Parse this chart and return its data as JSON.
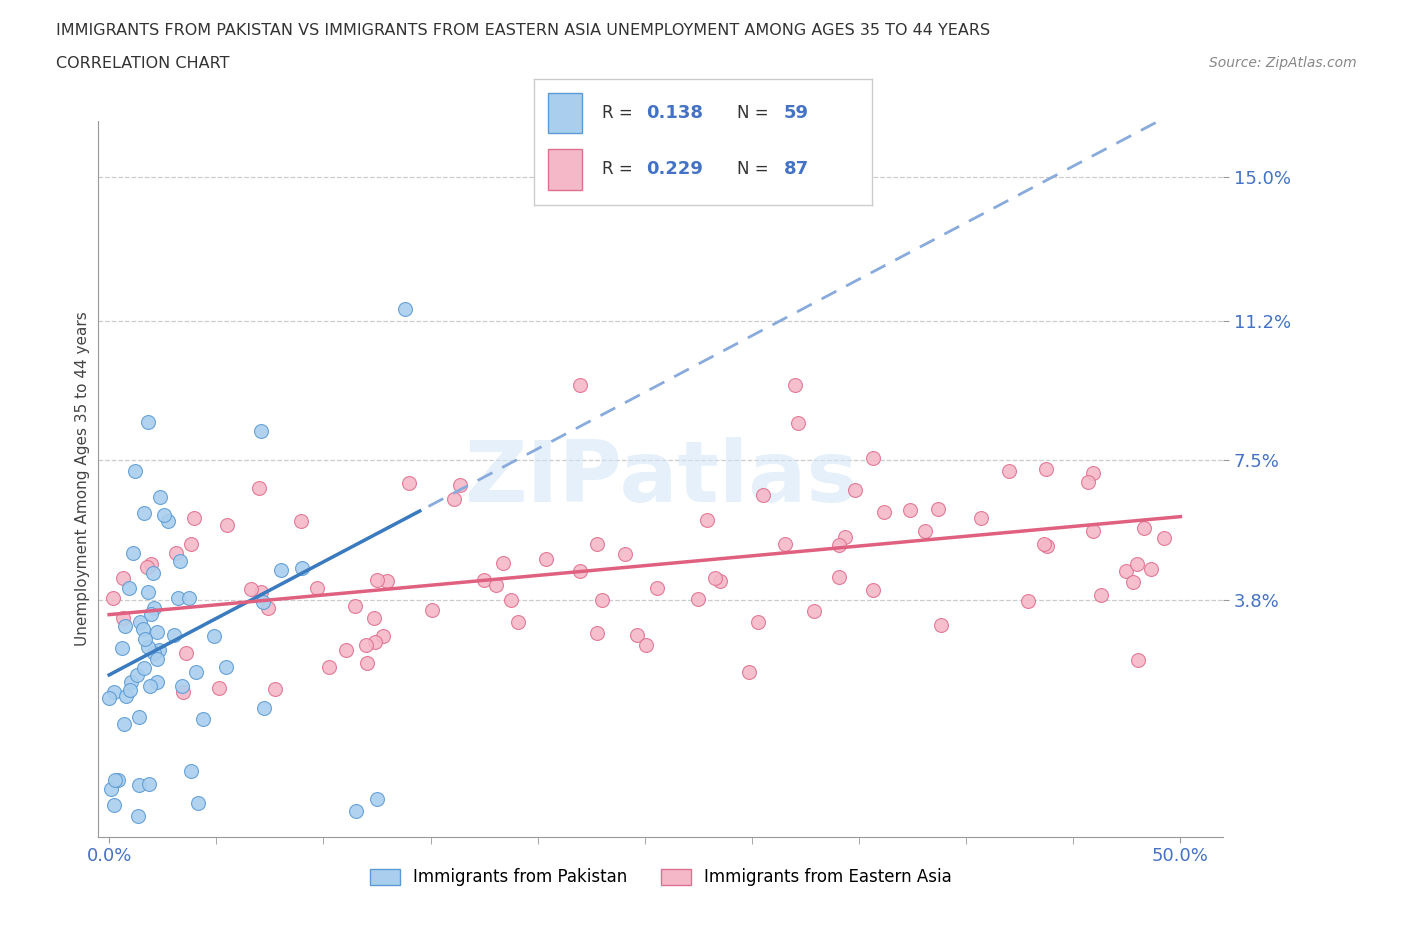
{
  "title_line1": "IMMIGRANTS FROM PAKISTAN VS IMMIGRANTS FROM EASTERN ASIA UNEMPLOYMENT AMONG AGES 35 TO 44 YEARS",
  "title_line2": "CORRELATION CHART",
  "source_text": "Source: ZipAtlas.com",
  "ylabel": "Unemployment Among Ages 35 to 44 years",
  "pakistan_color": "#aacfee",
  "pakistan_edge_color": "#5b9bd5",
  "eastern_asia_color": "#f5b8c8",
  "eastern_asia_edge_color": "#e07090",
  "pakistan_line_color": "#3a7abf",
  "eastern_asia_line_color": "#e06080",
  "pakistan_dash_color": "#88aadd",
  "pakistan_R": 0.138,
  "pakistan_N": 59,
  "eastern_asia_R": 0.229,
  "eastern_asia_N": 87,
  "legend_label_pakistan": "Immigrants from Pakistan",
  "legend_label_eastern_asia": "Immigrants from Eastern Asia",
  "watermark_text": "ZIPatlas",
  "grid_color": "#cccccc",
  "background_color": "#ffffff",
  "yticks": [
    0.038,
    0.075,
    0.112,
    0.15
  ],
  "ytick_labels": [
    "3.8%",
    "7.5%",
    "11.2%",
    "15.0%"
  ],
  "xticks": [
    0.0,
    0.5
  ],
  "xtick_labels": [
    "0.0%",
    "50.0%"
  ],
  "xlim": [
    -0.005,
    0.52
  ],
  "ylim": [
    -0.025,
    0.165
  ]
}
